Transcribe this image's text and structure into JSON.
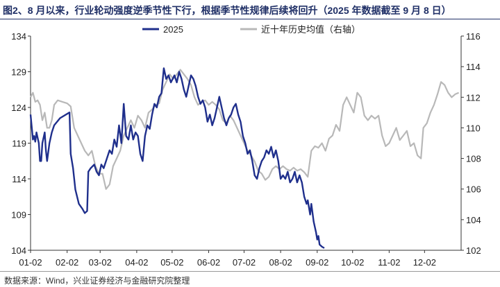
{
  "figure": {
    "title": "图2、8 月以来，行业轮动强度逆季节性下行，根据季节性规律后续将回升（2025 年数据截至 9 月 8 日）",
    "source": "数据来源：Wind，兴业证券经济与金融研究院整理"
  },
  "chart_data": {
    "type": "line",
    "x_ticks": [
      "01-02",
      "02-02",
      "03-02",
      "04-02",
      "05-02",
      "06-02",
      "07-02",
      "08-02",
      "09-02",
      "10-02",
      "11-02",
      "12-02"
    ],
    "y_left": {
      "ticks": [
        104,
        109,
        114,
        119,
        124,
        129,
        134
      ],
      "range": [
        104,
        134
      ]
    },
    "y_right": {
      "ticks": [
        102,
        104,
        106,
        108,
        110,
        112,
        114,
        116
      ],
      "range": [
        102,
        116
      ]
    },
    "legend_position": "top",
    "series": [
      {
        "name": "2025",
        "axis": "left",
        "color": "#1f2f8c",
        "points": [
          [
            "01-02",
            123
          ],
          [
            "01-04",
            119.5
          ],
          [
            "01-05",
            120
          ],
          [
            "01-06",
            119.2
          ],
          [
            "01-07",
            120.5
          ],
          [
            "01-09",
            119
          ],
          [
            "01-10",
            116.5
          ],
          [
            "01-11",
            116.5
          ],
          [
            "01-12",
            119
          ],
          [
            "01-14",
            120.5
          ],
          [
            "01-15",
            118
          ],
          [
            "01-16",
            116.5
          ],
          [
            "01-18",
            119
          ],
          [
            "01-20",
            120.5
          ],
          [
            "01-22",
            121.5
          ],
          [
            "01-27",
            122.5
          ],
          [
            "02-04",
            123.3
          ],
          [
            "02-05",
            117.5
          ],
          [
            "02-07",
            115.5
          ],
          [
            "02-09",
            112.5
          ],
          [
            "02-12",
            110.5
          ],
          [
            "02-15",
            109.8
          ],
          [
            "02-17",
            109.2
          ],
          [
            "02-19",
            109.5
          ],
          [
            "02-20",
            115
          ],
          [
            "02-22",
            115.5
          ],
          [
            "02-25",
            116
          ],
          [
            "02-27",
            115
          ],
          [
            "03-01",
            114.5
          ],
          [
            "03-03",
            116
          ],
          [
            "03-05",
            115.5
          ],
          [
            "03-08",
            117
          ],
          [
            "03-10",
            118
          ],
          [
            "03-12",
            117.5
          ],
          [
            "03-14",
            119.5
          ],
          [
            "03-16",
            118.5
          ],
          [
            "03-18",
            121.5
          ],
          [
            "03-20",
            119
          ],
          [
            "03-22",
            124.5
          ],
          [
            "03-24",
            120
          ],
          [
            "03-26",
            119.5
          ],
          [
            "03-28",
            121.5
          ],
          [
            "03-30",
            119.5
          ],
          [
            "04-01",
            120.5
          ],
          [
            "04-03",
            120
          ],
          [
            "04-05",
            117.5
          ],
          [
            "04-07",
            116.5
          ],
          [
            "04-09",
            120
          ],
          [
            "04-11",
            121.5
          ],
          [
            "04-13",
            121
          ],
          [
            "04-15",
            123
          ],
          [
            "04-17",
            124.5
          ],
          [
            "04-19",
            124
          ],
          [
            "04-21",
            125.5
          ],
          [
            "04-23",
            126
          ],
          [
            "04-25",
            129.5
          ],
          [
            "04-27",
            128
          ],
          [
            "04-29",
            128.5
          ],
          [
            "05-01",
            127.5
          ],
          [
            "05-04",
            128.5
          ],
          [
            "05-06",
            127.5
          ],
          [
            "05-08",
            129
          ],
          [
            "05-10",
            128
          ],
          [
            "05-12",
            126.5
          ],
          [
            "05-14",
            125.5
          ],
          [
            "05-16",
            127
          ],
          [
            "05-18",
            128.5
          ],
          [
            "05-20",
            128
          ],
          [
            "05-22",
            127
          ],
          [
            "05-24",
            125.5
          ],
          [
            "05-26",
            124.5
          ],
          [
            "05-28",
            125
          ],
          [
            "05-30",
            124
          ],
          [
            "06-01",
            122
          ],
          [
            "06-03",
            123
          ],
          [
            "06-05",
            121.5
          ],
          [
            "06-07",
            122.5
          ],
          [
            "06-09",
            124
          ],
          [
            "06-11",
            125.5
          ],
          [
            "06-13",
            124
          ],
          [
            "06-15",
            122.5
          ],
          [
            "06-17",
            121.5
          ],
          [
            "06-19",
            122.5
          ],
          [
            "06-21",
            123
          ],
          [
            "06-23",
            124
          ],
          [
            "06-25",
            124.5
          ],
          [
            "06-27",
            123
          ],
          [
            "06-29",
            122
          ],
          [
            "07-01",
            120
          ],
          [
            "07-03",
            119
          ],
          [
            "07-05",
            117.5
          ],
          [
            "07-07",
            118
          ],
          [
            "07-09",
            116.5
          ],
          [
            "07-11",
            114.5
          ],
          [
            "07-13",
            114
          ],
          [
            "07-15",
            115.5
          ],
          [
            "07-17",
            116.5
          ],
          [
            "07-19",
            117
          ],
          [
            "07-21",
            118
          ],
          [
            "07-23",
            117.5
          ],
          [
            "07-25",
            118.5
          ],
          [
            "07-27",
            117
          ],
          [
            "07-29",
            118
          ],
          [
            "07-31",
            116.5
          ],
          [
            "08-02",
            114
          ],
          [
            "08-04",
            114.5
          ],
          [
            "08-06",
            114
          ],
          [
            "08-08",
            115
          ],
          [
            "08-10",
            113.5
          ],
          [
            "08-12",
            114
          ],
          [
            "08-14",
            115
          ],
          [
            "08-16",
            113.5
          ],
          [
            "08-18",
            114.5
          ],
          [
            "08-20",
            113.5
          ],
          [
            "08-22",
            111.5
          ],
          [
            "08-24",
            110.5
          ],
          [
            "08-25",
            111
          ],
          [
            "08-27",
            109
          ],
          [
            "08-28",
            110.5
          ],
          [
            "08-30",
            108
          ],
          [
            "09-01",
            106.5
          ],
          [
            "09-02",
            105.5
          ],
          [
            "09-03",
            106
          ],
          [
            "09-04",
            104.8
          ],
          [
            "09-06",
            104.5
          ],
          [
            "09-08",
            104.3
          ]
        ]
      },
      {
        "name": "近十年历史均值（右轴）",
        "axis": "right",
        "color": "#b8b8b8",
        "points": [
          [
            "01-02",
            112
          ],
          [
            "01-04",
            112.3
          ],
          [
            "01-06",
            111.7
          ],
          [
            "01-08",
            111.8
          ],
          [
            "01-10",
            111.5
          ],
          [
            "01-12",
            110.5
          ],
          [
            "01-14",
            111
          ],
          [
            "01-16",
            110
          ],
          [
            "01-18",
            110
          ],
          [
            "01-20",
            110.5
          ],
          [
            "01-22",
            111.5
          ],
          [
            "01-25",
            111.8
          ],
          [
            "01-29",
            111.7
          ],
          [
            "02-02",
            111.6
          ],
          [
            "02-05",
            111.4
          ],
          [
            "02-08",
            110
          ],
          [
            "02-11",
            109.5
          ],
          [
            "02-14",
            109
          ],
          [
            "02-17",
            108.5
          ],
          [
            "02-20",
            108.2
          ],
          [
            "02-23",
            108.5
          ],
          [
            "02-26",
            107.5
          ],
          [
            "03-01",
            107
          ],
          [
            "03-04",
            107
          ],
          [
            "03-07",
            106
          ],
          [
            "03-10",
            106.3
          ],
          [
            "03-13",
            107.5
          ],
          [
            "03-16",
            108
          ],
          [
            "03-19",
            108.5
          ],
          [
            "03-22",
            109.5
          ],
          [
            "03-25",
            110
          ],
          [
            "03-28",
            110.5
          ],
          [
            "03-31",
            110
          ],
          [
            "04-03",
            110.8
          ],
          [
            "04-06",
            110.5
          ],
          [
            "04-09",
            110
          ],
          [
            "04-12",
            111
          ],
          [
            "04-15",
            111.2
          ],
          [
            "04-18",
            111.5
          ],
          [
            "04-21",
            111.6
          ],
          [
            "04-24",
            112.5
          ],
          [
            "04-27",
            113
          ],
          [
            "04-30",
            113.5
          ],
          [
            "05-03",
            113.2
          ],
          [
            "05-06",
            113.5
          ],
          [
            "05-09",
            113.8
          ],
          [
            "05-12",
            113.5
          ],
          [
            "05-15",
            113.2
          ],
          [
            "05-18",
            112.8
          ],
          [
            "05-21",
            112
          ],
          [
            "05-24",
            111.5
          ],
          [
            "05-27",
            111.7
          ],
          [
            "05-30",
            111.8
          ],
          [
            "06-02",
            111.5
          ],
          [
            "06-05",
            111.7
          ],
          [
            "06-08",
            111.5
          ],
          [
            "06-11",
            111.2
          ],
          [
            "06-14",
            110.5
          ],
          [
            "06-17",
            110.3
          ],
          [
            "06-20",
            110.8
          ],
          [
            "06-23",
            110.5
          ],
          [
            "06-26",
            110
          ],
          [
            "06-29",
            109.5
          ],
          [
            "07-02",
            109
          ],
          [
            "07-05",
            108.5
          ],
          [
            "07-08",
            108.2
          ],
          [
            "07-11",
            107.8
          ],
          [
            "07-14",
            107.2
          ],
          [
            "07-17",
            107
          ],
          [
            "07-20",
            106.6
          ],
          [
            "07-23",
            106.8
          ],
          [
            "07-26",
            107.3
          ],
          [
            "07-29",
            107.5
          ],
          [
            "08-01",
            107.3
          ],
          [
            "08-04",
            107.5
          ],
          [
            "08-07",
            107.3
          ],
          [
            "08-10",
            107.2
          ],
          [
            "08-13",
            107.4
          ],
          [
            "08-16",
            107.2
          ],
          [
            "08-19",
            107.3
          ],
          [
            "08-22",
            107.1
          ],
          [
            "08-25",
            106.8
          ],
          [
            "08-28",
            108.5
          ],
          [
            "08-31",
            108.8
          ],
          [
            "09-03",
            108.7
          ],
          [
            "09-06",
            109
          ],
          [
            "09-09",
            108.5
          ],
          [
            "09-12",
            109.3
          ],
          [
            "09-15",
            109.5
          ],
          [
            "09-18",
            110.2
          ],
          [
            "09-21",
            109.8
          ],
          [
            "09-24",
            111.5
          ],
          [
            "09-27",
            112
          ],
          [
            "09-30",
            111.5
          ],
          [
            "10-03",
            111
          ],
          [
            "10-06",
            112.3
          ],
          [
            "10-09",
            112
          ],
          [
            "10-12",
            110.8
          ],
          [
            "10-15",
            110.5
          ],
          [
            "10-18",
            110.8
          ],
          [
            "10-21",
            110.6
          ],
          [
            "10-24",
            110.8
          ],
          [
            "10-27",
            109.5
          ],
          [
            "10-30",
            108.8
          ],
          [
            "11-02",
            109
          ],
          [
            "11-05",
            109.5
          ],
          [
            "11-08",
            110
          ],
          [
            "11-11",
            109.2
          ],
          [
            "11-14",
            109.5
          ],
          [
            "11-17",
            109.8
          ],
          [
            "11-20",
            108.8
          ],
          [
            "11-23",
            109
          ],
          [
            "11-26",
            108.2
          ],
          [
            "11-29",
            108
          ],
          [
            "12-01",
            110
          ],
          [
            "12-04",
            110.3
          ],
          [
            "12-07",
            111
          ],
          [
            "12-10",
            111.5
          ],
          [
            "12-13",
            112.2
          ],
          [
            "12-16",
            113
          ],
          [
            "12-19",
            112.8
          ],
          [
            "12-22",
            112.3
          ],
          [
            "12-25",
            112
          ],
          [
            "12-28",
            112.2
          ],
          [
            "12-31",
            112.3
          ]
        ]
      }
    ]
  }
}
